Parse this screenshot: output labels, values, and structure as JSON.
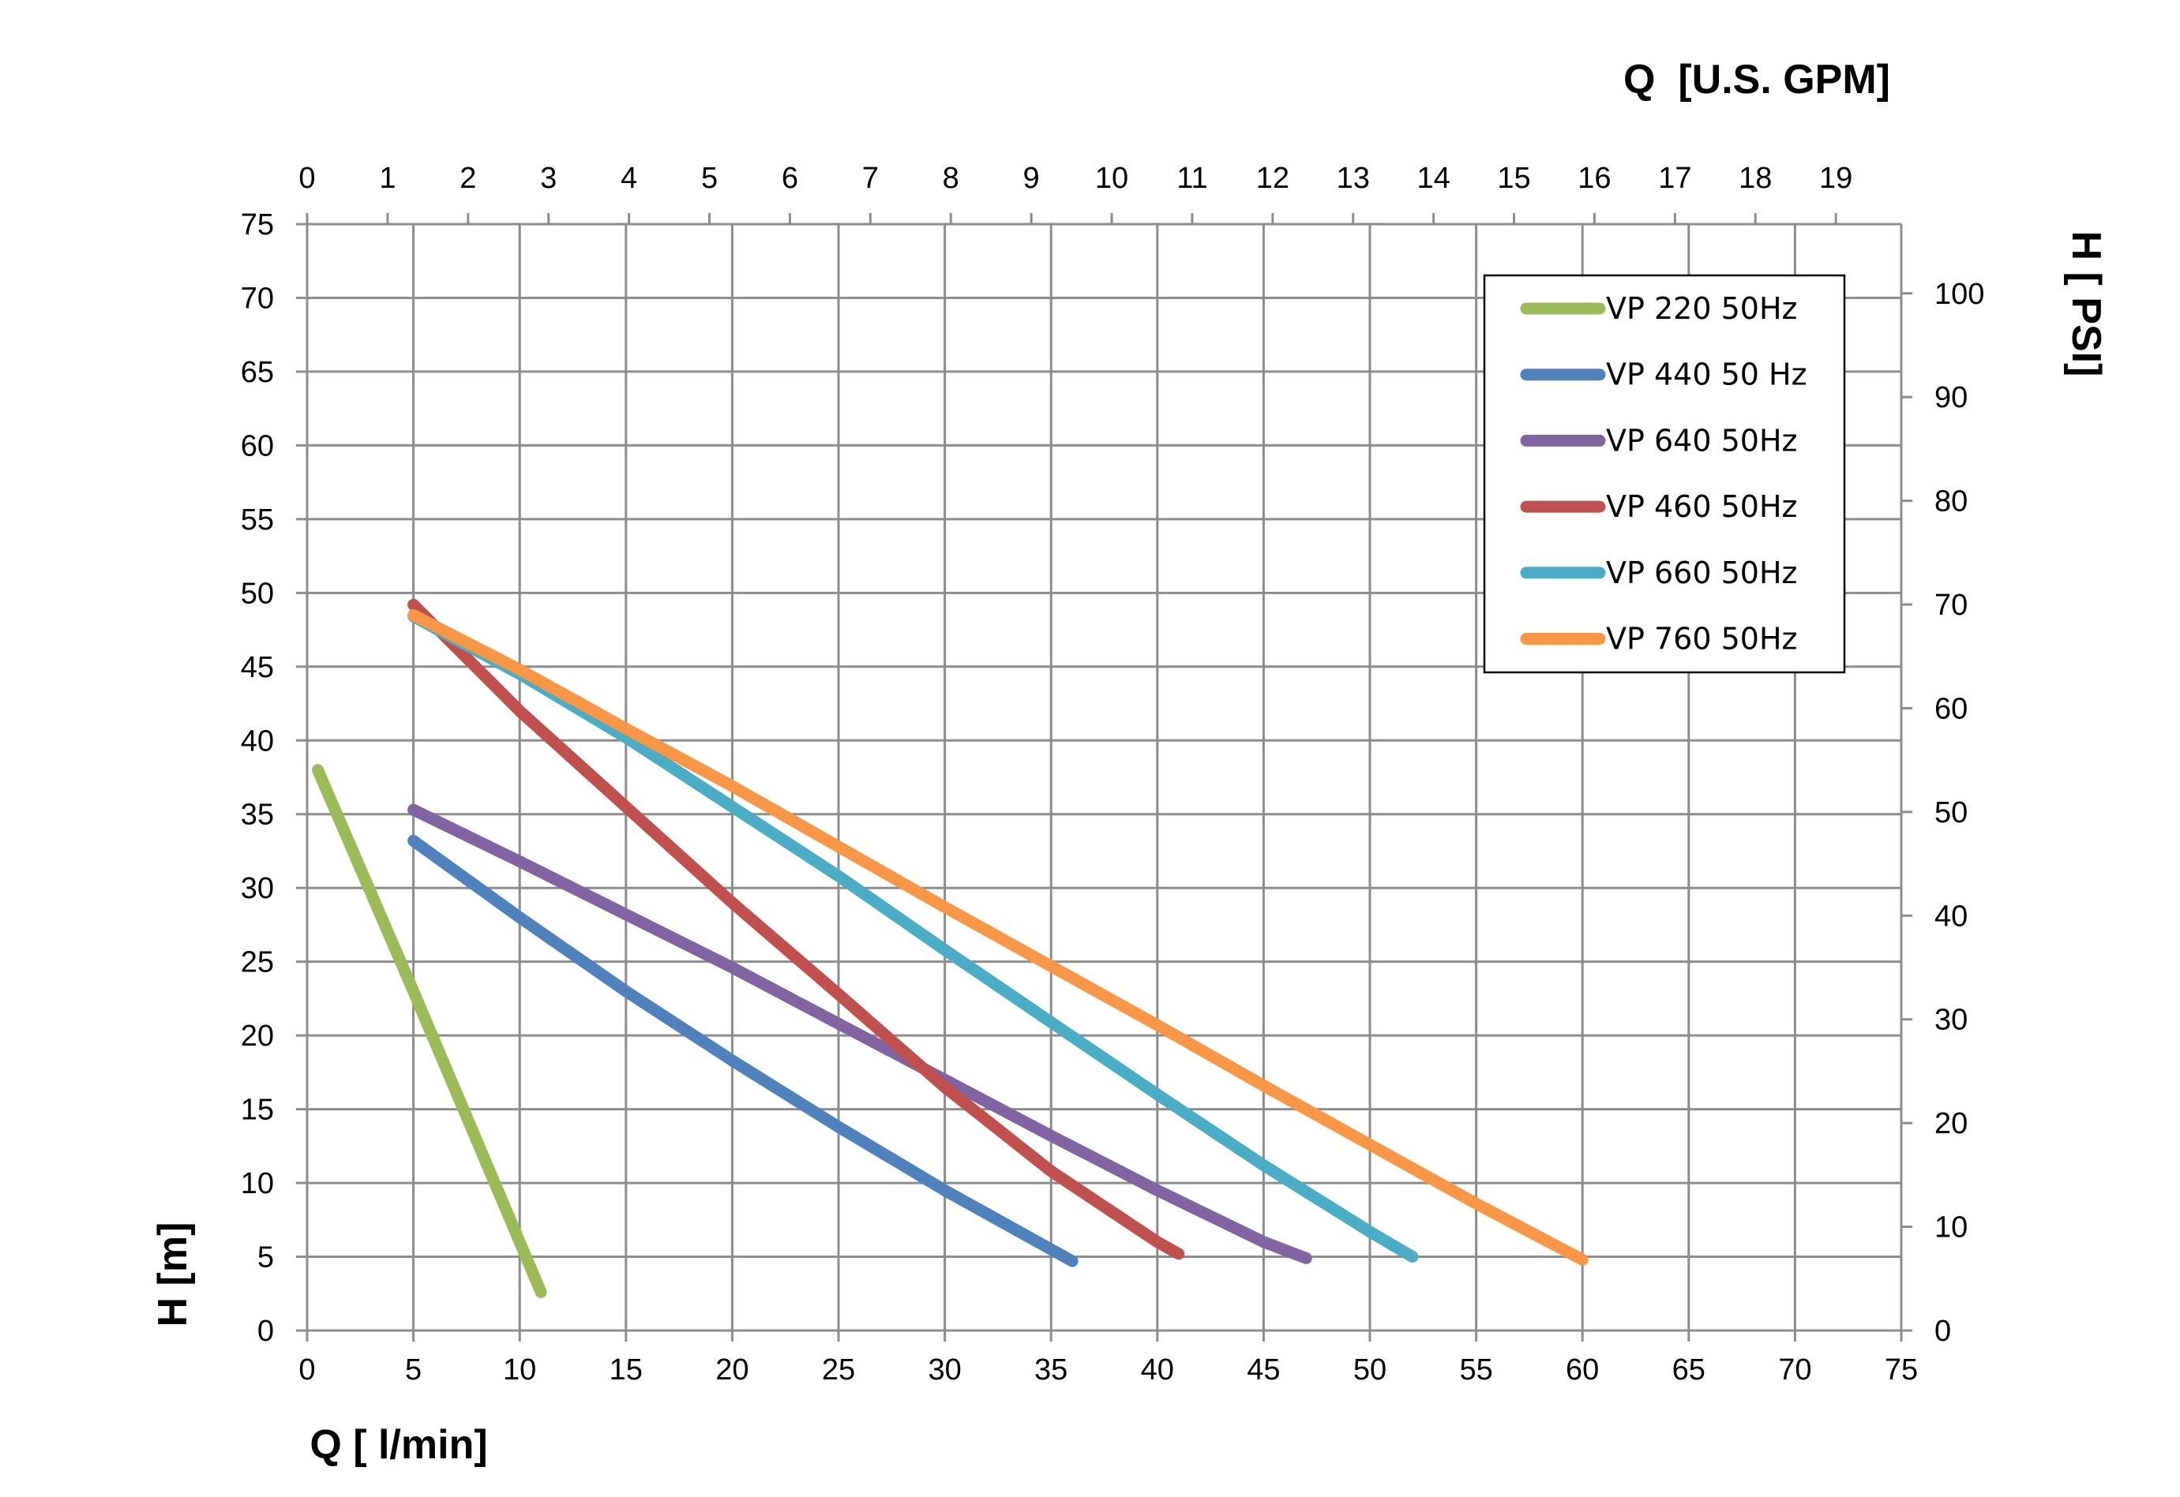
{
  "chart_data": {
    "type": "line",
    "x_bottom": {
      "label": "Q [ l/min]",
      "range": [
        0,
        75
      ],
      "ticks": [
        0,
        5,
        10,
        15,
        20,
        25,
        30,
        35,
        40,
        45,
        50,
        55,
        60,
        65,
        70,
        75
      ]
    },
    "x_top": {
      "label": "Q  [U.S. GPM]",
      "range_gpm": [
        0,
        19.813
      ],
      "ticks": [
        0,
        1,
        2,
        3,
        4,
        5,
        6,
        7,
        8,
        9,
        10,
        11,
        12,
        13,
        14,
        15,
        16,
        17,
        18,
        19
      ]
    },
    "y_left": {
      "label": "H [m]",
      "range": [
        0,
        75
      ],
      "ticks": [
        0,
        5,
        10,
        15,
        20,
        25,
        30,
        35,
        40,
        45,
        50,
        55,
        60,
        65,
        70,
        75
      ]
    },
    "y_right": {
      "label": "H [ PSI]",
      "range_psi": [
        0,
        106.68
      ],
      "ticks": [
        0,
        10,
        20,
        30,
        40,
        50,
        60,
        70,
        80,
        90,
        100
      ]
    },
    "grid": true,
    "legend_position": "top-right",
    "series": [
      {
        "name": "VP 220 50Hz",
        "color": "#9BBB59",
        "points": [
          [
            0.5,
            38
          ],
          [
            5,
            23
          ],
          [
            10,
            6
          ],
          [
            11,
            2.6
          ]
        ]
      },
      {
        "name": "VP 440 50 Hz",
        "color": "#4F81BD",
        "points": [
          [
            5,
            33.2
          ],
          [
            10,
            28
          ],
          [
            15,
            23
          ],
          [
            20,
            18.3
          ],
          [
            25,
            13.8
          ],
          [
            30,
            9.5
          ],
          [
            35,
            5.5
          ],
          [
            36,
            4.7
          ]
        ]
      },
      {
        "name": "VP 640 50Hz",
        "color": "#8064A2",
        "points": [
          [
            5,
            35.3
          ],
          [
            10,
            31.8
          ],
          [
            15,
            28.2
          ],
          [
            20,
            24.6
          ],
          [
            25,
            20.8
          ],
          [
            30,
            17
          ],
          [
            35,
            13.2
          ],
          [
            40,
            9.5
          ],
          [
            45,
            6
          ],
          [
            47,
            4.9
          ]
        ]
      },
      {
        "name": "VP 460 50Hz",
        "color": "#C0504D",
        "points": [
          [
            5,
            49.2
          ],
          [
            10,
            42
          ],
          [
            15,
            35.5
          ],
          [
            20,
            29
          ],
          [
            25,
            22.8
          ],
          [
            30,
            16.5
          ],
          [
            35,
            10.8
          ],
          [
            40,
            6
          ],
          [
            41,
            5.2
          ]
        ]
      },
      {
        "name": "VP 660 50Hz",
        "color": "#4BACC6",
        "points": [
          [
            5,
            48.4
          ],
          [
            10,
            44.5
          ],
          [
            15,
            40.2
          ],
          [
            20,
            35.5
          ],
          [
            25,
            30.8
          ],
          [
            30,
            25.8
          ],
          [
            35,
            20.9
          ],
          [
            40,
            16
          ],
          [
            45,
            11.2
          ],
          [
            50,
            6.7
          ],
          [
            52,
            5
          ]
        ]
      },
      {
        "name": "VP 760 50Hz",
        "color": "#F79646",
        "points": [
          [
            5,
            48.5
          ],
          [
            10,
            44.8
          ],
          [
            15,
            40.8
          ],
          [
            20,
            36.9
          ],
          [
            25,
            32.8
          ],
          [
            30,
            28.7
          ],
          [
            35,
            24.7
          ],
          [
            40,
            20.7
          ],
          [
            45,
            16.6
          ],
          [
            50,
            12.6
          ],
          [
            55,
            8.6
          ],
          [
            60,
            4.8
          ]
        ]
      }
    ]
  }
}
